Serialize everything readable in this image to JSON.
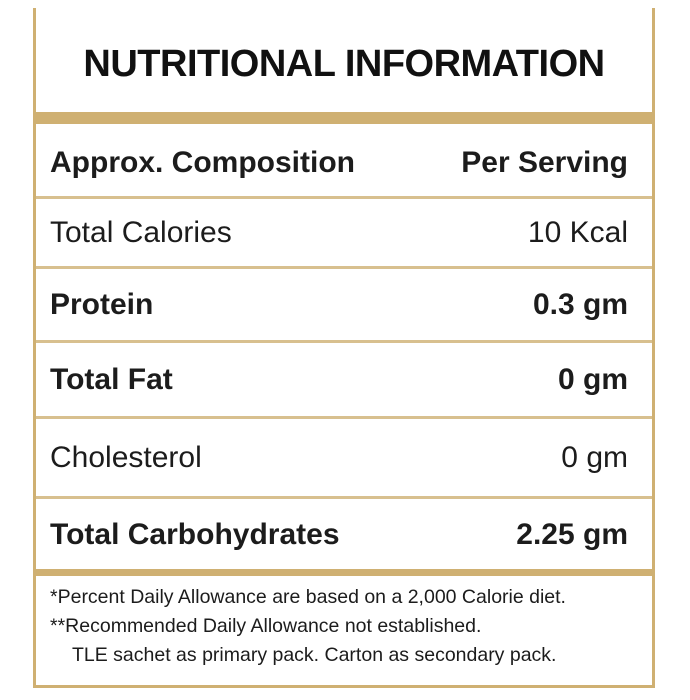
{
  "title": "NUTRITIONAL INFORMATION",
  "table": {
    "header": {
      "label": "Approx. Composition",
      "value": "Per Serving"
    },
    "rows": [
      {
        "label": "Total Calories",
        "value": "10 Kcal"
      },
      {
        "label": "Protein",
        "value": "0.3 gm"
      },
      {
        "label": "Total Fat",
        "value": "0 gm"
      },
      {
        "label": "Cholesterol",
        "value": "0 gm"
      },
      {
        "label": "Total Carbohydrates",
        "value": "2.25 gm"
      }
    ]
  },
  "footnotes": [
    "*Percent Daily Allowance are based on a 2,000 Calorie diet.",
    "**Recommended Daily Allowance not established.",
    "TLE sachet as primary pack. Carton as secondary pack."
  ],
  "colors": {
    "accent": "#cfb072",
    "text": "#1a1a1a"
  }
}
